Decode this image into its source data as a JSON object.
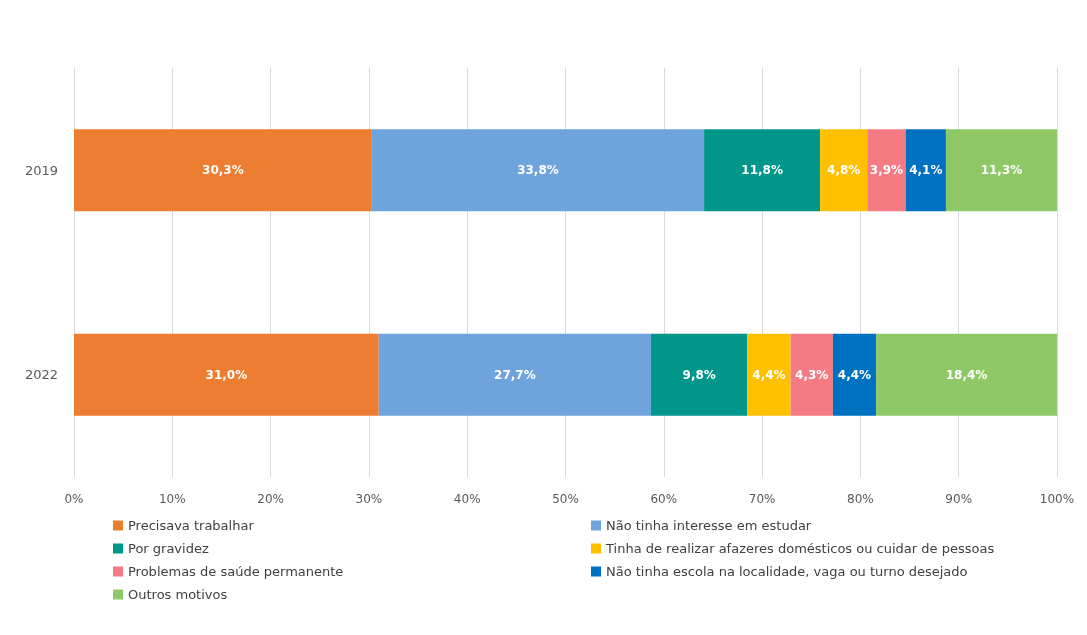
{
  "chart_data": {
    "type": "bar",
    "orientation": "horizontal",
    "stacked": true,
    "categories": [
      "2019",
      "2022"
    ],
    "series": [
      {
        "name": "Precisava trabalhar",
        "color": "#ed7d31",
        "values": [
          30.3,
          31.0
        ],
        "value_labels": [
          "30,3%",
          "31,0%"
        ]
      },
      {
        "name": "Não tinha interesse em estudar",
        "color": "#6fa3dc",
        "values": [
          33.8,
          27.7
        ],
        "value_labels": [
          "33,8%",
          "27,7%"
        ]
      },
      {
        "name": "Por gravidez",
        "color": "#00968a",
        "values": [
          11.8,
          9.8
        ],
        "value_labels": [
          "11,8%",
          "9,8%"
        ]
      },
      {
        "name": "Tinha de realizar afazeres domésticos ou cuidar de pessoas",
        "color": "#ffc000",
        "values": [
          4.8,
          4.4
        ],
        "value_labels": [
          "4,8%",
          "4,4%"
        ]
      },
      {
        "name": "Problemas de saúde permanente",
        "color": "#f47b84",
        "values": [
          3.9,
          4.3
        ],
        "value_labels": [
          "3,9%",
          "4,3%"
        ]
      },
      {
        "name": "Não tinha escola na localidade, vaga ou turno desejado",
        "color": "#0070c0",
        "values": [
          4.1,
          4.4
        ],
        "value_labels": [
          "4,1%",
          "4,4%"
        ]
      },
      {
        "name": "Outros motivos",
        "color": "#8fc866",
        "values": [
          11.3,
          18.4
        ],
        "value_labels": [
          "11,3%",
          "18,4%"
        ]
      }
    ],
    "xlim": [
      0,
      100
    ],
    "xticks": [
      {
        "value": 0,
        "label": "0%"
      },
      {
        "value": 10,
        "label": "10%"
      },
      {
        "value": 20,
        "label": "20%"
      },
      {
        "value": 30,
        "label": "30%"
      },
      {
        "value": 40,
        "label": "40%"
      },
      {
        "value": 50,
        "label": "50%"
      },
      {
        "value": 60,
        "label": "60%"
      },
      {
        "value": 70,
        "label": "70%"
      },
      {
        "value": 80,
        "label": "80%"
      },
      {
        "value": 90,
        "label": "90%"
      },
      {
        "value": 100,
        "label": "100%"
      }
    ],
    "grid": "x",
    "legend": "bottom"
  }
}
